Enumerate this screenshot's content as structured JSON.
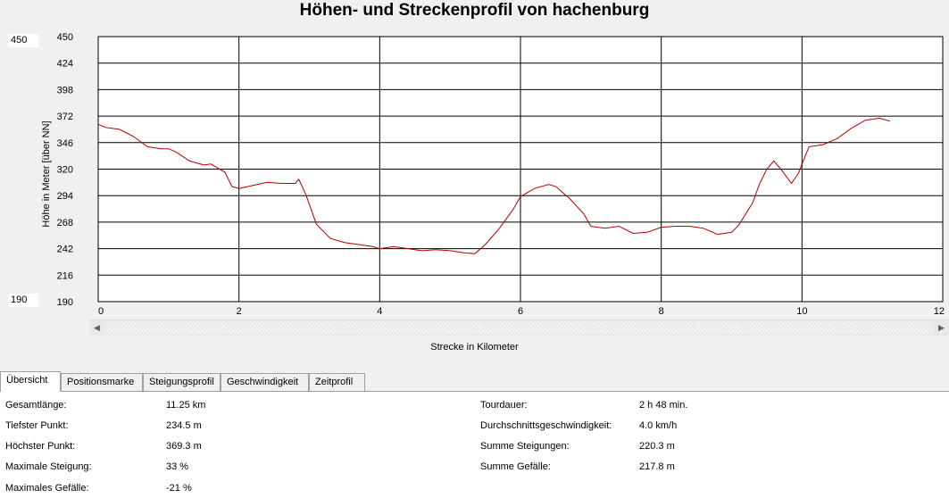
{
  "title": "Höhen- und Streckenprofil von hachenburg",
  "range_boxes": {
    "max": "450",
    "min": "190"
  },
  "tabs": [
    "Übersicht",
    "Positionsmarke",
    "Steigungsprofil",
    "Geschwindigkeit",
    "Zeitprofil"
  ],
  "stats_left": [
    {
      "label": "Gesamtlänge:",
      "value": "11.25 km"
    },
    {
      "label": "Tiefster Punkt:",
      "value": "234.5 m"
    },
    {
      "label": "Höchster Punkt:",
      "value": "369.3 m"
    },
    {
      "label": "Maximale Steigung:",
      "value": "33 %"
    },
    {
      "label": "Maximales Gefälle:",
      "value": "-21 %"
    }
  ],
  "stats_right": [
    {
      "label": "Tourdauer:",
      "value": "2 h 48 min."
    },
    {
      "label": "Durchschnittsgeschwindigkeit:",
      "value": "4.0 km/h"
    },
    {
      "label": "Summe Steigungen:",
      "value": "220.3 m"
    },
    {
      "label": "Summe Gefälle:",
      "value": "217.8 m"
    }
  ],
  "colors": {
    "line": "#b00000",
    "grid": "#000000",
    "plot_bg": "#ffffff"
  },
  "chart_data": {
    "type": "line",
    "title": "Höhen- und Streckenprofil von hachenburg",
    "xlabel": "Strecke in Kilometer",
    "ylabel": "Höhe in Meter [über NN]",
    "xlim": [
      0,
      12
    ],
    "ylim": [
      190,
      450
    ],
    "xticks": [
      "0",
      "2",
      "4",
      "6",
      "8",
      "10",
      "12"
    ],
    "yticks": [
      "190",
      "216",
      "242",
      "268",
      "294",
      "320",
      "346",
      "372",
      "398",
      "424",
      "450"
    ],
    "grid": true,
    "series": [
      {
        "x": [
          0,
          0.1,
          0.3,
          0.5,
          0.7,
          0.9,
          1.0,
          1.1,
          1.3,
          1.5,
          1.6,
          1.8,
          1.9,
          2.0,
          2.2,
          2.4,
          2.6,
          2.8,
          2.85,
          2.95,
          3.1,
          3.3,
          3.5,
          3.7,
          3.9,
          4.0,
          4.2,
          4.4,
          4.6,
          4.8,
          5.0,
          5.2,
          5.35,
          5.5,
          5.7,
          5.9,
          6.0,
          6.2,
          6.4,
          6.5,
          6.7,
          6.9,
          7.0,
          7.2,
          7.4,
          7.6,
          7.8,
          8.0,
          8.2,
          8.4,
          8.6,
          8.8,
          9.0,
          9.1,
          9.3,
          9.4,
          9.5,
          9.6,
          9.7,
          9.85,
          9.95,
          10.0,
          10.1,
          10.3,
          10.5,
          10.7,
          10.9,
          11.1,
          11.25
        ],
        "y": [
          364,
          361,
          359,
          352,
          342,
          340,
          340,
          337,
          328,
          324,
          325,
          317,
          303,
          301,
          304,
          307,
          306,
          306,
          310,
          295,
          266,
          252,
          248,
          246,
          244,
          242,
          244,
          242,
          240,
          241,
          240,
          238,
          237,
          246,
          262,
          281,
          293,
          301,
          305,
          303,
          291,
          276,
          264,
          262,
          264,
          257,
          258,
          263,
          264,
          264,
          262,
          256,
          258,
          265,
          287,
          306,
          320,
          328,
          320,
          306,
          316,
          325,
          342,
          344,
          350,
          360,
          368,
          370,
          367
        ]
      }
    ]
  }
}
